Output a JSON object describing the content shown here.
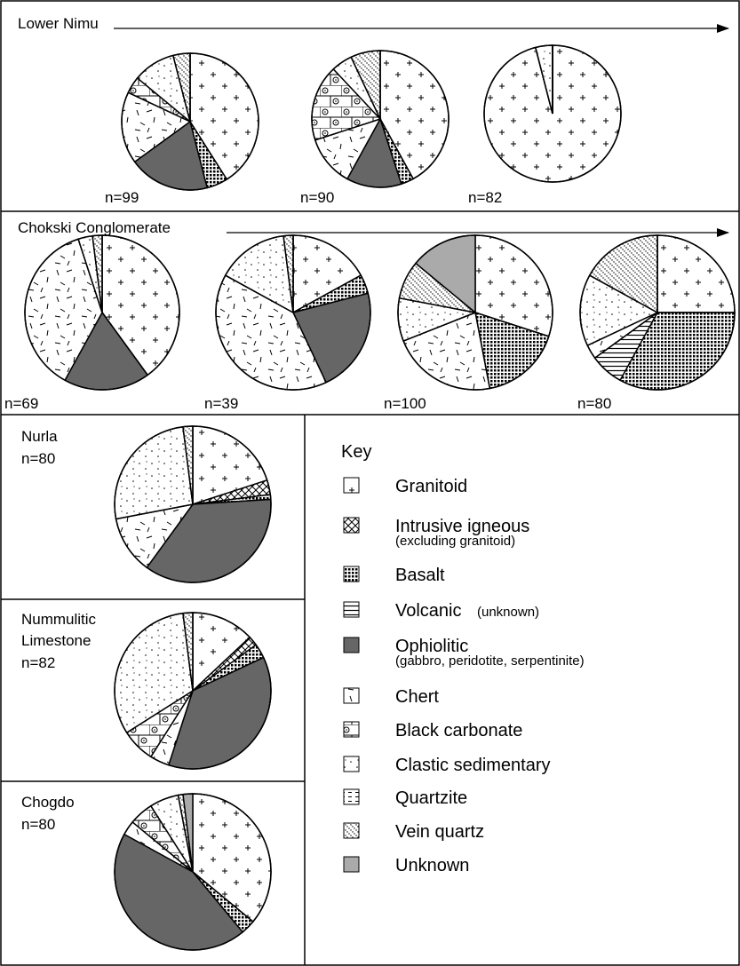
{
  "row_titles": [
    "Lower Nimu",
    "Chokski Conglomerate"
  ],
  "legend": {
    "title": "Key",
    "items": [
      {
        "name": "Granitoid"
      },
      {
        "name": "Intrusive igneous",
        "note": "(excluding granitoid)"
      },
      {
        "name": "Basalt"
      },
      {
        "name": "Volcanic",
        "note": "(unknown)"
      },
      {
        "name": "Ophiolitic",
        "note": "(gabbro, peridotite, serpentinite)"
      },
      {
        "name": "Chert"
      },
      {
        "name": "Black carbonate"
      },
      {
        "name": "Clastic sedimentary"
      },
      {
        "name": "Quartzite"
      },
      {
        "name": "Vein quartz"
      },
      {
        "name": "Unknown"
      }
    ]
  },
  "chart_data": [
    {
      "type": "pie",
      "label": "n=99",
      "values": [
        41,
        0,
        5,
        0,
        19,
        17,
        4,
        10,
        0,
        4,
        0
      ]
    },
    {
      "type": "pie",
      "label": "n=90",
      "values": [
        42,
        0,
        3,
        0,
        13,
        12,
        18,
        5,
        0,
        7,
        0
      ]
    },
    {
      "type": "pie",
      "label": "n=82",
      "values": [
        96,
        0,
        0,
        0,
        0,
        0,
        0,
        4,
        0,
        0,
        0
      ]
    },
    {
      "type": "pie",
      "label": "n=69",
      "values": [
        40,
        0,
        0,
        0,
        18,
        37,
        0,
        3,
        0,
        2,
        0
      ]
    },
    {
      "type": "pie",
      "label": "n=39",
      "values": [
        17,
        0,
        4,
        0,
        22,
        40,
        0,
        15,
        0,
        2,
        0
      ]
    },
    {
      "type": "pie",
      "label": "n=100",
      "values": [
        30,
        0,
        17,
        0,
        0,
        22,
        0,
        9,
        0,
        8,
        14
      ]
    },
    {
      "type": "pie",
      "label": "n=80",
      "values": [
        25,
        0,
        33,
        7,
        0,
        3,
        0,
        15,
        0,
        17,
        0
      ]
    },
    {
      "type": "pie",
      "title": "Nurla",
      "label": "n=80",
      "values": [
        20,
        3,
        1,
        0,
        36,
        12,
        0,
        26,
        0,
        2,
        0
      ]
    },
    {
      "type": "pie",
      "title": "Nummulitic Limestone",
      "label": "n=82",
      "values": [
        13,
        2,
        3,
        0,
        37,
        4,
        7,
        32,
        0,
        2,
        0
      ]
    },
    {
      "type": "pie",
      "title": "Chogdo",
      "label": "n=80",
      "values": [
        36,
        0,
        3,
        0,
        44,
        3,
        5,
        6,
        0,
        1,
        2
      ]
    }
  ]
}
